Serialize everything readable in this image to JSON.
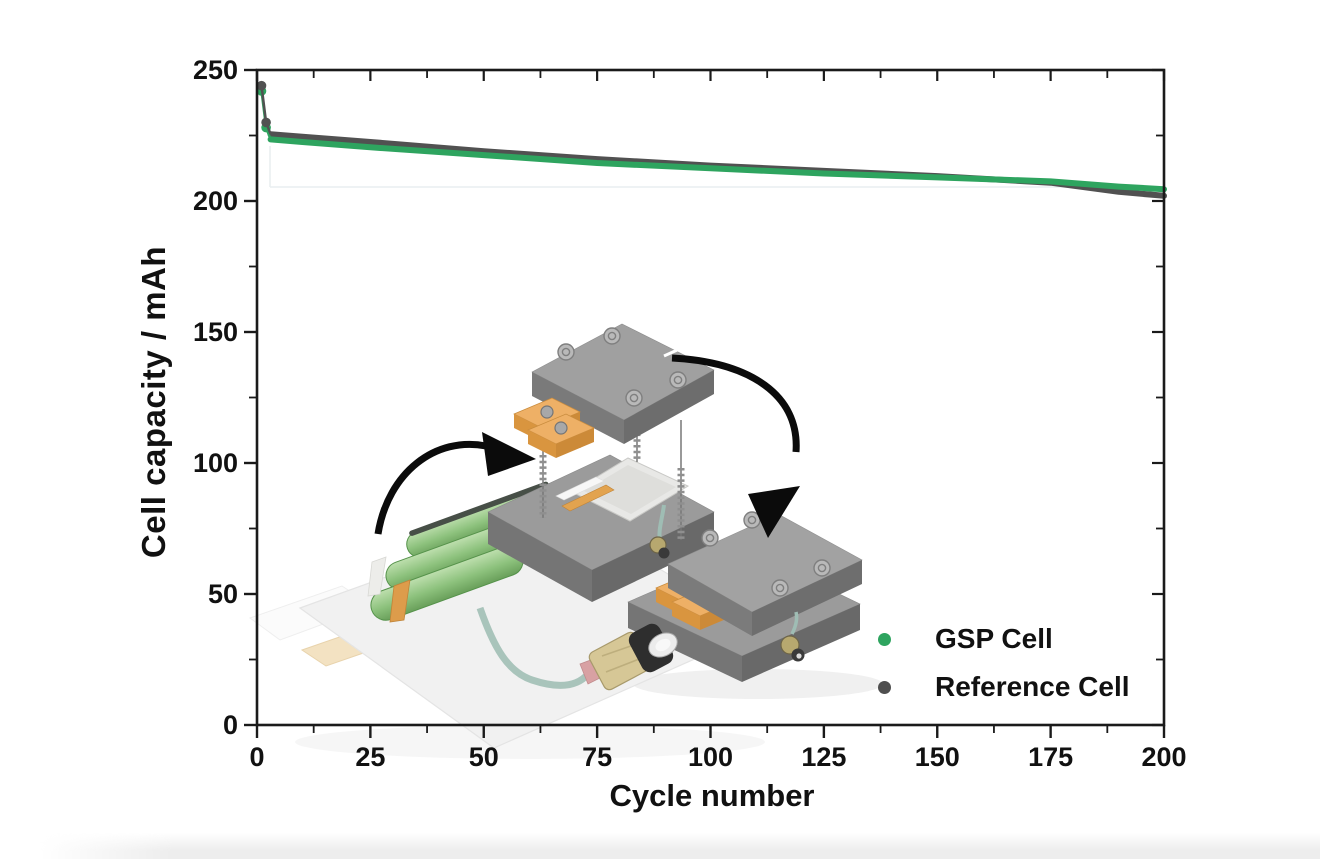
{
  "chart_data": {
    "type": "scatter",
    "title": "",
    "xlabel": "Cycle number",
    "ylabel": "Cell capacity / mAh",
    "xlim": [
      0,
      200
    ],
    "ylim": [
      0,
      250
    ],
    "x_major_ticks": [
      0,
      25,
      50,
      75,
      100,
      125,
      150,
      175,
      200
    ],
    "x_tick_labels": [
      "0",
      "25",
      "50",
      "75",
      "100",
      "125",
      "150",
      "175",
      "200"
    ],
    "x_minor_step": 12.5,
    "y_major_ticks": [
      0,
      50,
      100,
      150,
      200,
      250
    ],
    "y_tick_labels": [
      "0",
      "50",
      "100",
      "150",
      "200",
      "250"
    ],
    "y_minor_step": 25,
    "grid": false,
    "axis_color": "#1a1a1a",
    "legend_position": "lower right",
    "series": [
      {
        "name": "Reference Cell",
        "color": "#515151",
        "points": [
          [
            1,
            244
          ],
          [
            2,
            230
          ],
          [
            3,
            225.5
          ],
          [
            10,
            224.5
          ],
          [
            25,
            222.5
          ],
          [
            50,
            219
          ],
          [
            75,
            216
          ],
          [
            100,
            213.5
          ],
          [
            125,
            211.5
          ],
          [
            150,
            209.5
          ],
          [
            175,
            207
          ],
          [
            190,
            203.5
          ],
          [
            200,
            202
          ]
        ]
      },
      {
        "name": "GSP Cell",
        "color": "#2ea45f",
        "points": [
          [
            1,
            242
          ],
          [
            2,
            228
          ],
          [
            3,
            223.5
          ],
          [
            10,
            222.5
          ],
          [
            25,
            220.5
          ],
          [
            50,
            217.5
          ],
          [
            75,
            214.5
          ],
          [
            100,
            212.5
          ],
          [
            125,
            210.5
          ],
          [
            150,
            209
          ],
          [
            175,
            207.5
          ],
          [
            190,
            205.5
          ],
          [
            200,
            204.5
          ]
        ]
      }
    ]
  },
  "legend": {
    "entries": [
      {
        "label": "GSP Cell",
        "color": "#2ea45f"
      },
      {
        "label": "Reference Cell",
        "color": "#4f4f4f"
      }
    ]
  },
  "illustration": {
    "parts": [
      "battery-jelly-rolls-icon",
      "pouch-foil-sheet-icon",
      "transfer-arrow-icon",
      "test-fixture-exploded-icon",
      "test-fixture-assembled-icon",
      "cable-connector-icon"
    ]
  }
}
